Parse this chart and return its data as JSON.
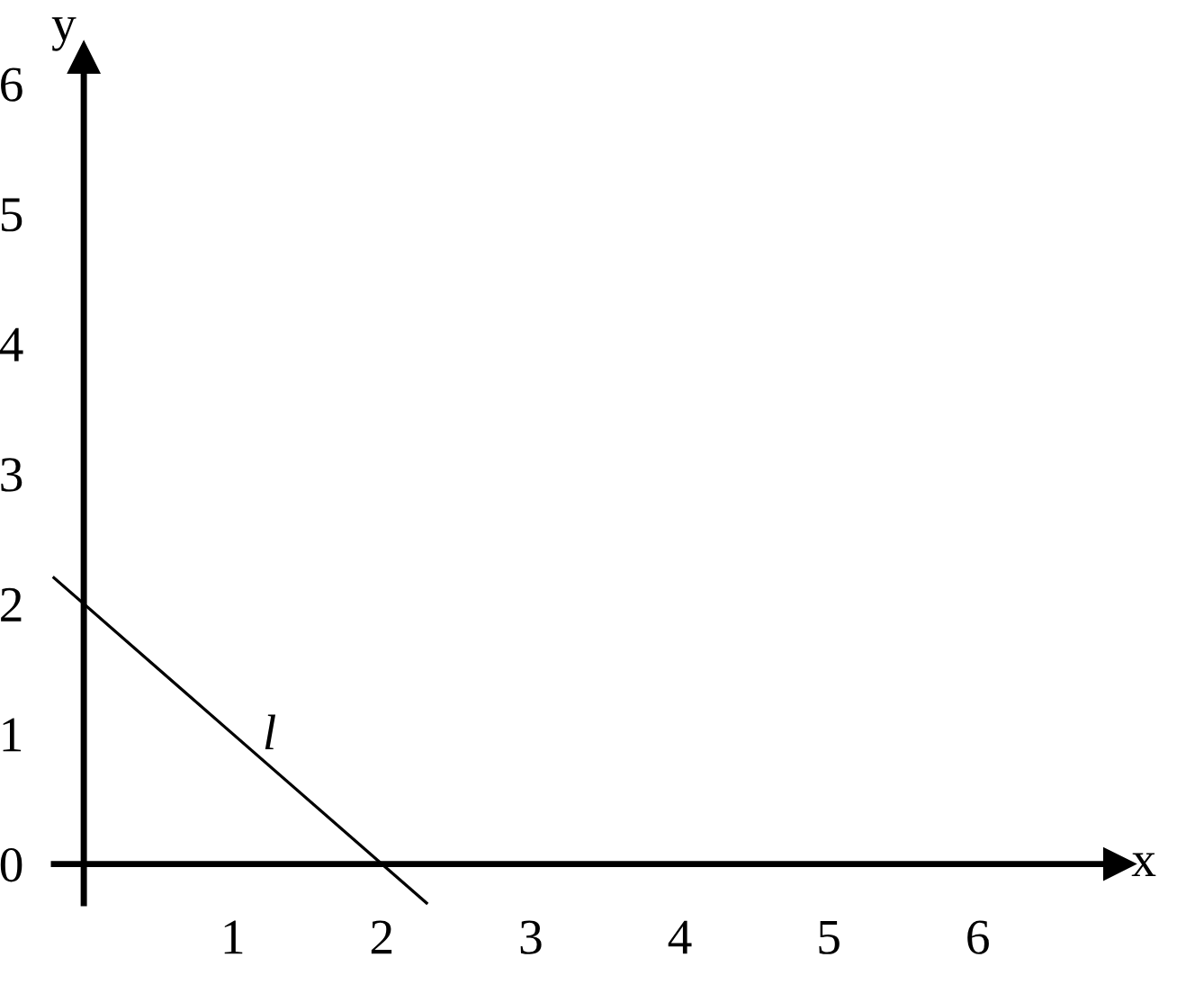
{
  "chart_data": {
    "type": "line",
    "xlabel": "x",
    "ylabel": "y",
    "series": [
      {
        "color": "#000000",
        "x": [
          -0.2,
          2.3
        ],
        "values": [
          2.2,
          -0.3
        ]
      }
    ],
    "annotations": [
      {
        "text": "l",
        "x": 1.2,
        "y": 0.8
      }
    ],
    "xlim": [
      -0.2,
      6.95
    ],
    "ylim": [
      -0.3,
      6.2
    ],
    "xticks": [
      1,
      2,
      3,
      4,
      5,
      6
    ],
    "yticks": [
      0,
      1,
      2,
      3,
      4,
      5,
      6
    ],
    "grid": false,
    "marker": "none",
    "line_style": "solid"
  }
}
